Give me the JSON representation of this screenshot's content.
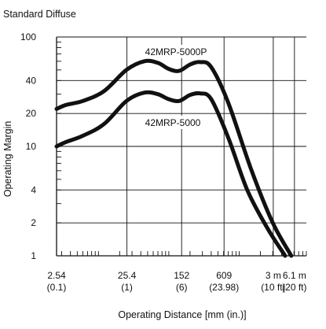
{
  "chart_data": {
    "type": "line",
    "title": "Standard Diffuse",
    "xlabel": "Operating Distance [mm (in.)]",
    "ylabel": "Operating Margin",
    "x_scale": "log",
    "y_scale": "log",
    "xlim_mm": [
      2.54,
      9000
    ],
    "ylim": [
      1,
      100
    ],
    "grid": true,
    "legend": "none",
    "x_ticks": [
      {
        "value": 2.54,
        "label": "2.54",
        "sublabel": "(0.1)"
      },
      {
        "value": 25.4,
        "label": "25.4",
        "sublabel": "(1)"
      },
      {
        "value": 152,
        "label": "152",
        "sublabel": "(6)"
      },
      {
        "value": 609,
        "label": "609",
        "sublabel": "(23.98)"
      },
      {
        "value": 3048,
        "label": "3 m",
        "sublabel": "(10 ft)"
      },
      {
        "value": 6096,
        "label": "6.1 m",
        "sublabel": "(20 ft)"
      }
    ],
    "y_ticks": [
      {
        "value": 100,
        "label": "100"
      },
      {
        "value": 40,
        "label": "40"
      },
      {
        "value": 20,
        "label": "20"
      },
      {
        "value": 10,
        "label": "10"
      },
      {
        "value": 4,
        "label": "4"
      },
      {
        "value": 2,
        "label": "2"
      },
      {
        "value": 1,
        "label": "1"
      }
    ],
    "series": [
      {
        "name": "42MRP-5000P",
        "color": "#111111",
        "x": [
          2.54,
          3.5,
          6,
          12,
          25,
          45,
          70,
          100,
          140,
          200,
          280,
          400,
          700,
          1500,
          3000,
          5500
        ],
        "values": [
          22,
          24,
          26,
          32,
          50,
          60,
          58,
          51,
          49,
          56,
          59,
          53,
          25,
          6,
          2,
          1
        ]
      },
      {
        "name": "42MRP-5000",
        "color": "#111111",
        "x": [
          2.54,
          3.5,
          6,
          12,
          25,
          45,
          70,
          100,
          140,
          200,
          280,
          400,
          700,
          1300,
          2500,
          4500
        ],
        "values": [
          10,
          11,
          12.5,
          16,
          26,
          31,
          30,
          27,
          26,
          29.5,
          30.5,
          27,
          12,
          4,
          1.8,
          1
        ]
      }
    ],
    "annotations": [
      {
        "text": "42MRP-5000P",
        "series": "42MRP-5000P"
      },
      {
        "text": "42MRP-5000",
        "series": "42MRP-5000"
      }
    ]
  }
}
